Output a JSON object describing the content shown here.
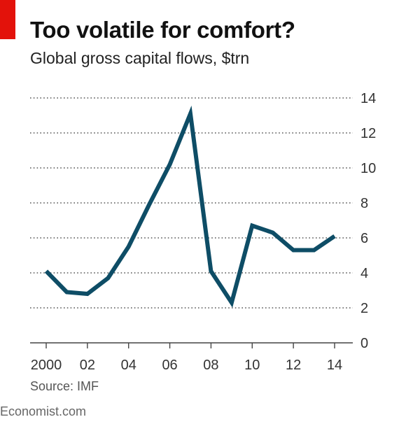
{
  "header": {
    "title": "Too volatile for comfort?",
    "subtitle": "Global gross capital flows, $trn"
  },
  "footer": {
    "source": "Source: IMF",
    "brand": "Economist.com"
  },
  "colors": {
    "accent": "#e3120b",
    "line": "#0e4d66",
    "grid": "#555555",
    "text": "#333333"
  },
  "chart_data": {
    "type": "line",
    "title": "Too volatile for comfort?",
    "subtitle": "Global gross capital flows, $trn",
    "xlabel": "",
    "ylabel": "",
    "x": [
      2000,
      2001,
      2002,
      2003,
      2004,
      2005,
      2006,
      2007,
      2008,
      2009,
      2010,
      2011,
      2012,
      2013,
      2014
    ],
    "series": [
      {
        "values": [
          4.1,
          2.9,
          2.8,
          3.7,
          5.5,
          7.9,
          10.2,
          13.1,
          4.1,
          2.3,
          6.7,
          6.3,
          5.3,
          5.3,
          6.1
        ]
      }
    ],
    "xticks": [
      "2000",
      "02",
      "04",
      "06",
      "08",
      "10",
      "12",
      "14"
    ],
    "xtick_values": [
      2000,
      2002,
      2004,
      2006,
      2008,
      2010,
      2012,
      2014
    ],
    "yticks": [
      "0",
      "2",
      "4",
      "6",
      "8",
      "10",
      "12",
      "14"
    ],
    "ylim": [
      0,
      14
    ],
    "xlim": [
      2000,
      2014
    ],
    "grid": true,
    "yaxis_side": "right"
  }
}
